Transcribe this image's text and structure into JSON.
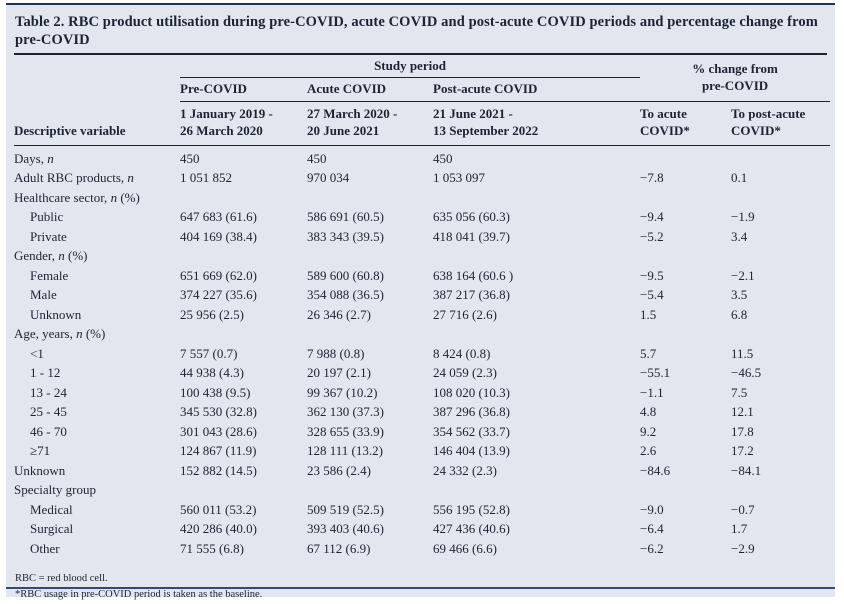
{
  "colors": {
    "card_background": "#e2e6ee",
    "text": "#1c2433",
    "header_rule": "#1c2433",
    "accent_rule": "#2e4a78"
  },
  "table": {
    "title": "Table 2. RBC product utilisation during pre-COVID, acute COVID and post-acute COVID periods and percentage change from pre-COVID",
    "header": {
      "study_period": "Study period",
      "pct_change": "% change from\npre-COVID",
      "descriptive_variable": "Descriptive variable",
      "periods": [
        "Pre-COVID",
        "Acute COVID",
        "Post-acute COVID"
      ],
      "dates": [
        "1 January 2019 -\n26 March 2020",
        "27 March 2020 -\n20 June 2021",
        "21 June 2021 -\n13 September 2022"
      ],
      "change_cols": [
        "To acute\nCOVID*",
        "To post-acute\nCOVID*"
      ]
    },
    "rows": [
      {
        "label": "Days, *n*",
        "indent": 0,
        "values": [
          "450",
          "450",
          "450",
          "",
          ""
        ]
      },
      {
        "label": "Adult RBC products, *n*",
        "indent": 0,
        "values": [
          "1 051 852",
          "970 034",
          "1 053 097",
          "−7.8",
          "0.1"
        ]
      },
      {
        "label": "Healthcare sector, *n* (%)",
        "indent": 0,
        "values": [
          "",
          "",
          "",
          "",
          ""
        ]
      },
      {
        "label": "Public",
        "indent": 1,
        "values": [
          "647 683 (61.6)",
          "586 691 (60.5)",
          "635 056 (60.3)",
          "−9.4",
          "−1.9"
        ]
      },
      {
        "label": "Private",
        "indent": 1,
        "values": [
          "404 169 (38.4)",
          "383 343 (39.5)",
          "418 041 (39.7)",
          "−5.2",
          "3.4"
        ]
      },
      {
        "label": "Gender, *n* (%)",
        "indent": 0,
        "values": [
          "",
          "",
          "",
          "",
          ""
        ]
      },
      {
        "label": "Female",
        "indent": 1,
        "values": [
          "651 669 (62.0)",
          "589 600 (60.8)",
          "638 164 (60.6 )",
          "−9.5",
          "−2.1"
        ]
      },
      {
        "label": "Male",
        "indent": 1,
        "values": [
          "374 227 (35.6)",
          "354 088 (36.5)",
          "387 217 (36.8)",
          "−5.4",
          "3.5"
        ]
      },
      {
        "label": "Unknown",
        "indent": 1,
        "values": [
          "25 956 (2.5)",
          "26 346 (2.7)",
          "27 716 (2.6)",
          "1.5",
          "6.8"
        ]
      },
      {
        "label": "Age, years, *n* (%)",
        "indent": 0,
        "values": [
          "",
          "",
          "",
          "",
          ""
        ]
      },
      {
        "label": "<1",
        "indent": 1,
        "values": [
          "7 557 (0.7)",
          "7 988 (0.8)",
          "8 424 (0.8)",
          "5.7",
          "11.5"
        ]
      },
      {
        "label": "1 - 12",
        "indent": 1,
        "values": [
          "44 938 (4.3)",
          "20 197 (2.1)",
          "24 059 (2.3)",
          "−55.1",
          "−46.5"
        ]
      },
      {
        "label": "13 - 24",
        "indent": 1,
        "values": [
          "100 438 (9.5)",
          "99 367 (10.2)",
          "108 020 (10.3)",
          "−1.1",
          "7.5"
        ]
      },
      {
        "label": "25 - 45",
        "indent": 1,
        "values": [
          "345 530 (32.8)",
          "362 130 (37.3)",
          "387 296 (36.8)",
          "4.8",
          "12.1"
        ]
      },
      {
        "label": "46 - 70",
        "indent": 1,
        "values": [
          "301 043 (28.6)",
          "328 655 (33.9)",
          "354 562 (33.7)",
          "9.2",
          "17.8"
        ]
      },
      {
        "label": "≥71",
        "indent": 1,
        "values": [
          "124 867 (11.9)",
          "128 111 (13.2)",
          "146 404 (13.9)",
          "2.6",
          "17.2"
        ]
      },
      {
        "label": "Unknown",
        "indent": 0,
        "values": [
          "152 882 (14.5)",
          "23 586 (2.4)",
          "24 332 (2.3)",
          "−84.6",
          "−84.1"
        ]
      },
      {
        "label": "Specialty group",
        "indent": 0,
        "values": [
          "",
          "",
          "",
          "",
          ""
        ]
      },
      {
        "label": "Medical",
        "indent": 1,
        "values": [
          "560 011 (53.2)",
          "509 519 (52.5)",
          "556 195 (52.8)",
          "−9.0",
          "−0.7"
        ]
      },
      {
        "label": "Surgical",
        "indent": 1,
        "values": [
          "420 286 (40.0)",
          "393 403 (40.6)",
          "427 436 (40.6)",
          "−6.4",
          "1.7"
        ]
      },
      {
        "label": "Other",
        "indent": 1,
        "values": [
          "71 555 (6.8)",
          "67 112 (6.9)",
          "69 466 (6.6)",
          "−6.2",
          "−2.9"
        ]
      }
    ],
    "footnotes": [
      "RBC = red blood cell.",
      "*RBC usage in pre-COVID period is taken as the baseline."
    ]
  }
}
